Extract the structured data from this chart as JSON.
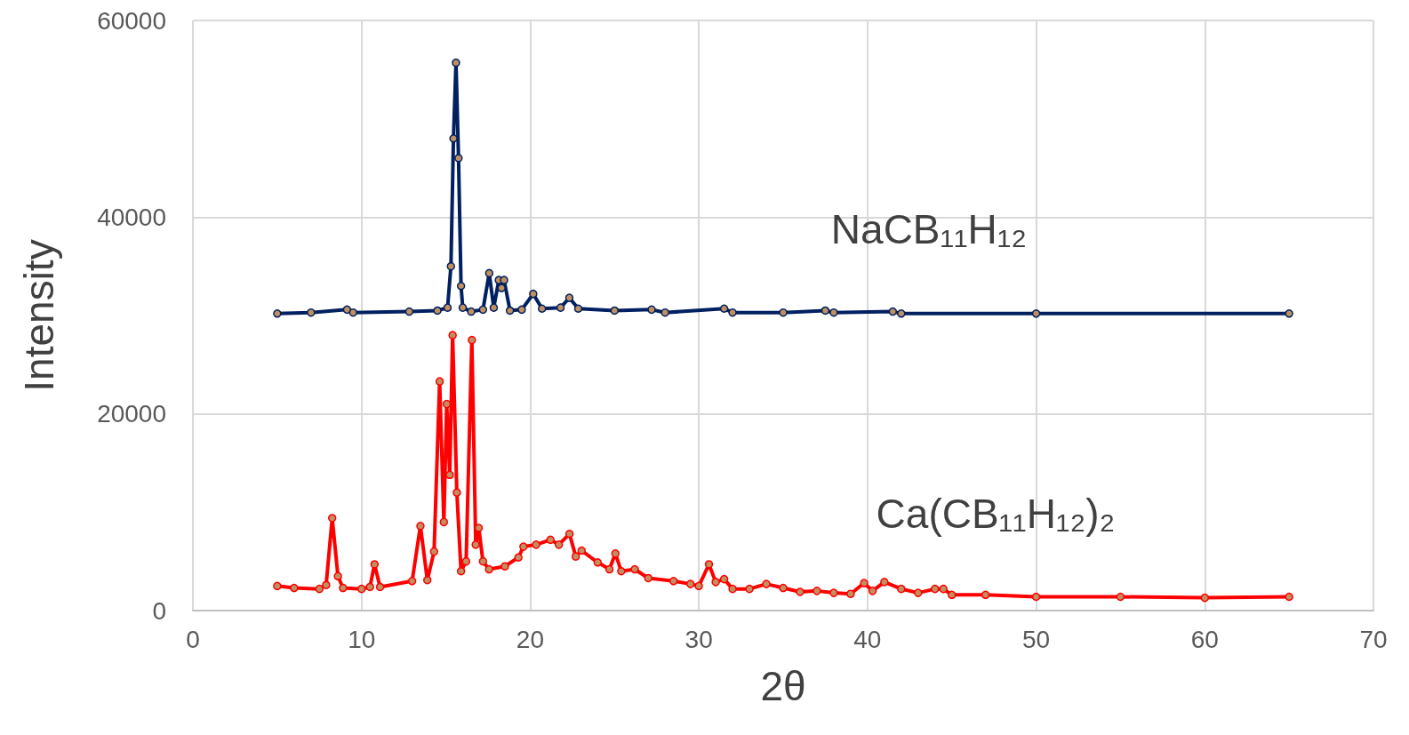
{
  "chart_data": {
    "type": "line",
    "xlabel": "2θ",
    "ylabel": "Intensity",
    "xlim": [
      0,
      70
    ],
    "xticks": [
      0,
      10,
      20,
      30,
      40,
      50,
      60,
      70
    ],
    "ylim": [
      0,
      60000
    ],
    "yticks": [
      0,
      20000,
      40000,
      60000
    ],
    "grid": true,
    "marker": "circle",
    "line_style": "solid",
    "series": [
      {
        "name": "NaCB₁₁H₁₂",
        "color": "#002060",
        "x": [
          5,
          7,
          9.14,
          9.5,
          12.83,
          14.5,
          15.1,
          15.3,
          15.45,
          15.6,
          15.75,
          15.9,
          16.0,
          16.5,
          17.2,
          17.57,
          17.84,
          18.14,
          18.3,
          18.45,
          18.8,
          19.5,
          20.18,
          20.7,
          21.8,
          22.32,
          22.85,
          25,
          27.2,
          28,
          31.5,
          32,
          35,
          37.5,
          38,
          41.5,
          42,
          50,
          65
        ],
        "values": [
          30200,
          30300,
          30600,
          30300,
          30400,
          30500,
          30800,
          35000,
          48000,
          55700,
          46000,
          33000,
          30800,
          30400,
          30600,
          34300,
          30800,
          33600,
          32800,
          33600,
          30500,
          30600,
          32200,
          30700,
          30800,
          31800,
          30700,
          30500,
          30600,
          30300,
          30700,
          30300,
          30300,
          30500,
          30300,
          30400,
          30200,
          30200,
          30200
        ]
      },
      {
        "name": "Ca(CB₁₁H₁₂)₂",
        "color": "#ff0000",
        "x": [
          5,
          6,
          7.5,
          7.9,
          8.26,
          8.6,
          8.9,
          10,
          10.5,
          10.77,
          11.1,
          13,
          13.49,
          13.9,
          14.3,
          14.63,
          14.88,
          15.05,
          15.23,
          15.4,
          15.65,
          15.9,
          16.2,
          16.54,
          16.77,
          16.95,
          17.2,
          17.56,
          18.5,
          19.3,
          19.6,
          20.35,
          21.2,
          21.7,
          22.33,
          22.7,
          23.05,
          24,
          24.7,
          25.05,
          25.4,
          26.2,
          27,
          28.5,
          29.5,
          30,
          30.6,
          31,
          31.5,
          32,
          33,
          34,
          35,
          36,
          37,
          38,
          39,
          39.8,
          40.3,
          41,
          42,
          43,
          44,
          44.5,
          45,
          47,
          50,
          55,
          60,
          65
        ],
        "values": [
          2500,
          2300,
          2200,
          2600,
          9400,
          3500,
          2300,
          2200,
          2400,
          4700,
          2400,
          3000,
          8600,
          3100,
          6000,
          23300,
          9000,
          21000,
          13800,
          28000,
          12000,
          4000,
          5000,
          27500,
          6700,
          8400,
          5000,
          4200,
          4500,
          5400,
          6500,
          6700,
          7200,
          6700,
          7800,
          5500,
          6100,
          4900,
          4200,
          5800,
          4000,
          4200,
          3300,
          3000,
          2700,
          2500,
          4700,
          2900,
          3200,
          2200,
          2200,
          2700,
          2300,
          1900,
          2000,
          1800,
          1700,
          2800,
          2000,
          2900,
          2200,
          1800,
          2200,
          2200,
          1600,
          1600,
          1400,
          1400,
          1300,
          1400
        ]
      }
    ]
  }
}
